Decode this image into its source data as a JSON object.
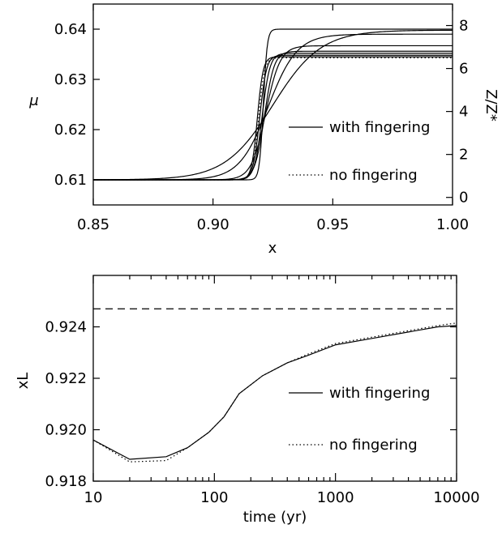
{
  "chart_data": [
    {
      "type": "line",
      "xlabel": "x",
      "ylabel": "μ",
      "y2label": "Z/Z*",
      "xlim": [
        0.85,
        1.0
      ],
      "ylim": [
        0.605,
        0.645
      ],
      "y2lim": [
        -0.35,
        9.0
      ],
      "xticks": [
        "0.85",
        "0.90",
        "0.95",
        "1.00"
      ],
      "yticks": [
        "0.61",
        "0.62",
        "0.63",
        "0.64"
      ],
      "y2ticks": [
        "0",
        "2",
        "4",
        "6",
        "8"
      ],
      "legend": [
        {
          "label": "with fingering",
          "style": "solid"
        },
        {
          "label": "no fingering",
          "style": "dotted"
        }
      ],
      "series": [
        {
          "style": "solid",
          "step_x": 0.921,
          "width": 0.0008,
          "low": 0.61,
          "high": 0.64
        },
        {
          "style": "solid",
          "step_x": 0.9185,
          "width": 0.0012,
          "low": 0.61,
          "high": 0.6345
        },
        {
          "style": "solid",
          "step_x": 0.9195,
          "width": 0.0014,
          "low": 0.61,
          "high": 0.6348
        },
        {
          "style": "solid",
          "step_x": 0.9205,
          "width": 0.0016,
          "low": 0.61,
          "high": 0.6352
        },
        {
          "style": "solid",
          "step_x": 0.9215,
          "width": 0.002,
          "low": 0.61,
          "high": 0.6356
        },
        {
          "style": "solid",
          "step_x": 0.922,
          "width": 0.003,
          "low": 0.61,
          "high": 0.6367
        },
        {
          "style": "solid",
          "step_x": 0.923,
          "width": 0.006,
          "low": 0.61,
          "high": 0.639
        },
        {
          "style": "solid",
          "step_x": 0.925,
          "width": 0.01,
          "low": 0.61,
          "high": 0.6398
        },
        {
          "style": "dotted",
          "step_x": 0.919,
          "width": 0.0012,
          "low": 0.61,
          "high": 0.6343
        }
      ]
    },
    {
      "type": "line",
      "xlabel": "time (yr)",
      "ylabel": "xL",
      "xscale": "log",
      "xlim": [
        10,
        10000
      ],
      "ylim": [
        0.918,
        0.926
      ],
      "xticks": [
        "10",
        "100",
        "1000",
        "10000"
      ],
      "yticks": [
        "0.918",
        "0.920",
        "0.922",
        "0.924"
      ],
      "reference_line": {
        "y": 0.9247,
        "style": "dashed"
      },
      "legend": [
        {
          "label": "with fingering",
          "style": "solid"
        },
        {
          "label": "no fingering",
          "style": "dotted"
        }
      ],
      "series": [
        {
          "style": "solid",
          "x": [
            10,
            20,
            40,
            60,
            90,
            120,
            160,
            250,
            400,
            600,
            1000,
            2000,
            4000,
            7000,
            10000
          ],
          "y": [
            0.9196,
            0.91885,
            0.91895,
            0.9193,
            0.9199,
            0.9205,
            0.9214,
            0.9221,
            0.9226,
            0.9229,
            0.9233,
            0.92355,
            0.9238,
            0.924,
            0.92405
          ]
        },
        {
          "style": "dotted",
          "x": [
            10,
            20,
            40,
            60,
            90,
            120,
            160,
            250,
            400,
            600,
            1000,
            2000,
            4000,
            7000,
            10000
          ],
          "y": [
            0.9196,
            0.91875,
            0.9188,
            0.9193,
            0.9199,
            0.9205,
            0.9214,
            0.9221,
            0.9226,
            0.92295,
            0.92335,
            0.9236,
            0.92385,
            0.92405,
            0.92415
          ]
        }
      ]
    }
  ]
}
